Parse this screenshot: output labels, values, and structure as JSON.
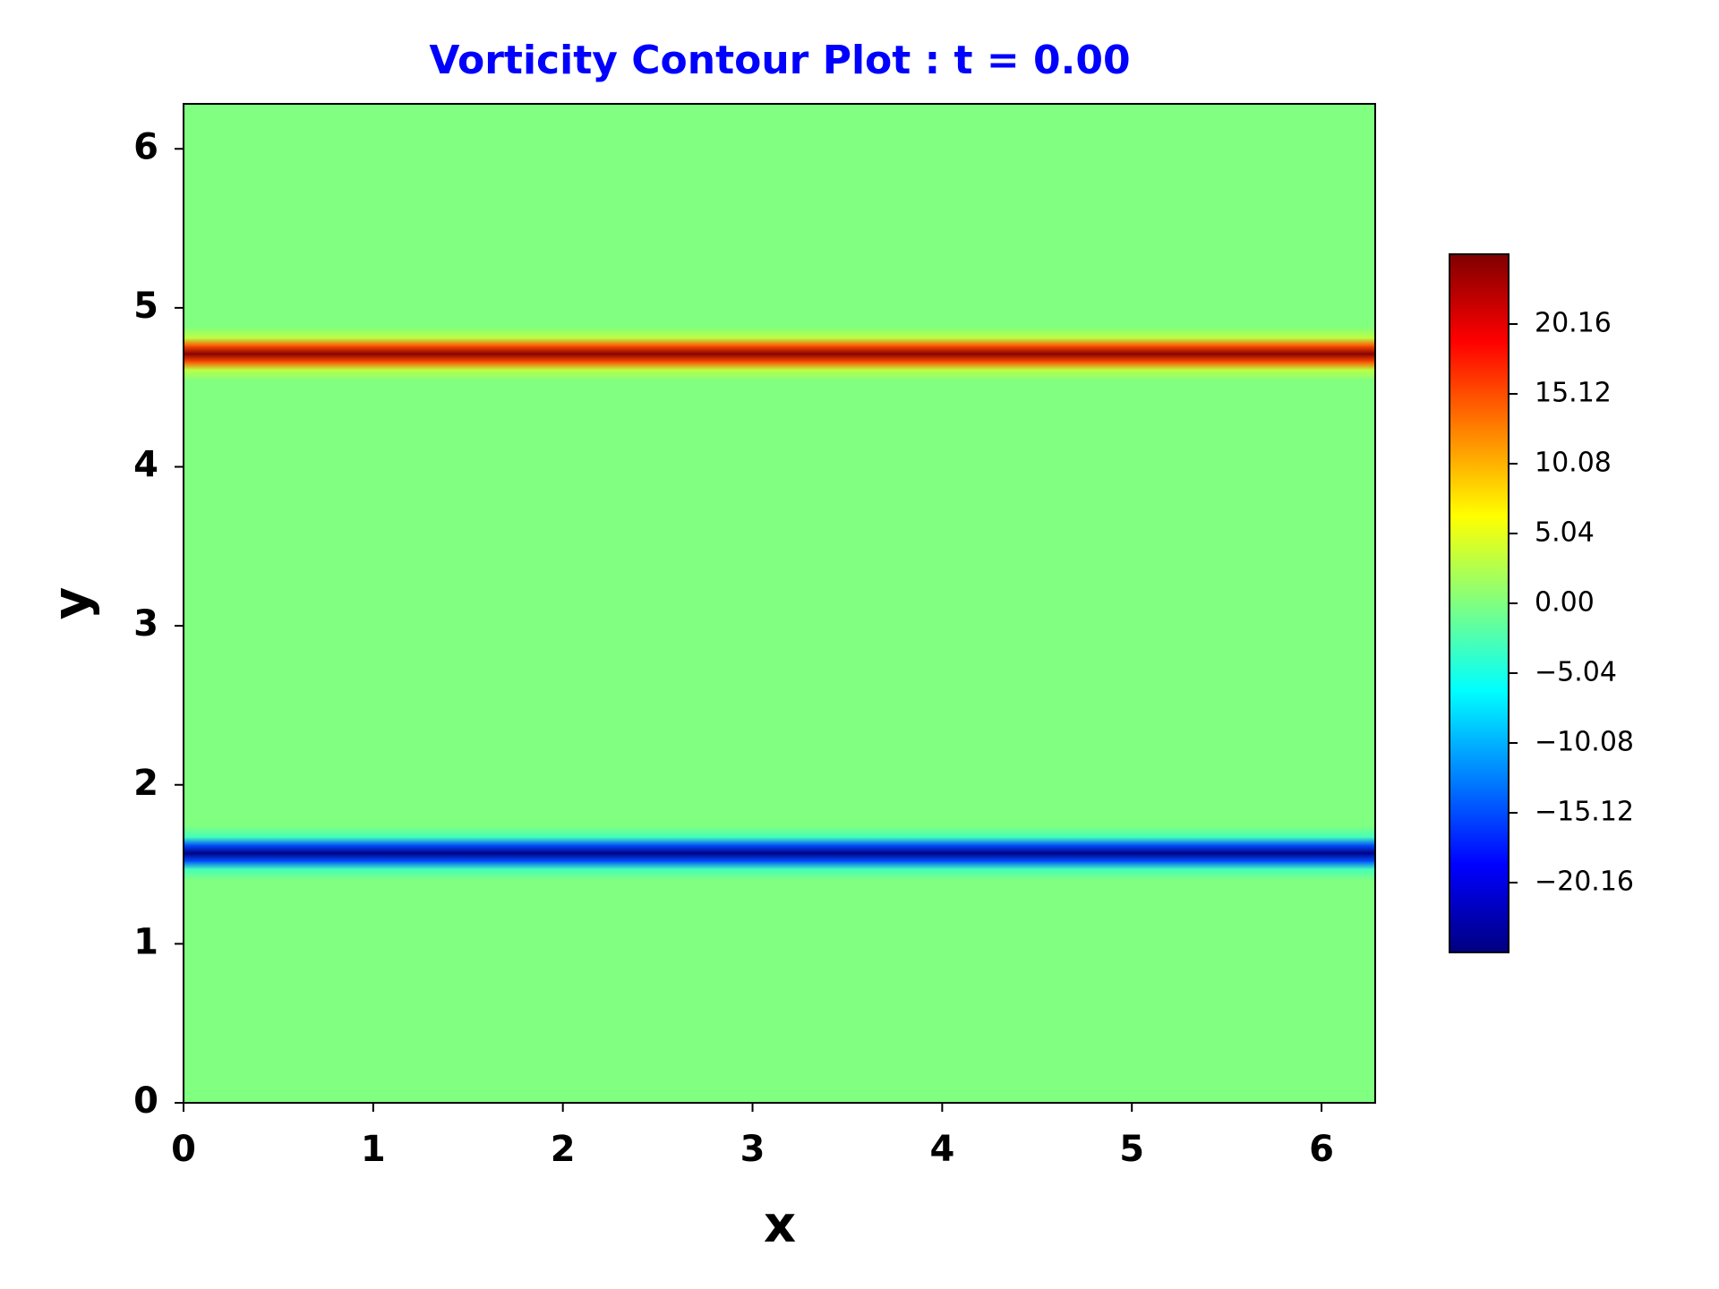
{
  "chart_data": {
    "type": "heatmap",
    "title": "Vorticity Contour Plot : t = 0.00",
    "title_color": "#0000ff",
    "xlabel": "x",
    "ylabel": "y",
    "colormap": "jet",
    "y": [
      0,
      1.4,
      1.47,
      1.52,
      1.57,
      1.62,
      1.67,
      1.74,
      4.54,
      4.61,
      4.66,
      4.71,
      4.76,
      4.81,
      4.88,
      6.283
    ],
    "values": [
      0,
      0,
      -3,
      -15,
      -25,
      -15,
      -3,
      0,
      0,
      3,
      15,
      25,
      15,
      3,
      0,
      0
    ],
    "xlim": [
      0,
      6.283
    ],
    "ylim": [
      0,
      6.283
    ],
    "xticks": [
      0,
      1,
      2,
      3,
      4,
      5,
      6
    ],
    "yticks": [
      0,
      1,
      2,
      3,
      4,
      5,
      6
    ],
    "clim": [
      -25.2,
      25.2
    ],
    "cticks": [
      {
        "value": -20.16,
        "label": "−20.16"
      },
      {
        "value": -15.12,
        "label": "−15.12"
      },
      {
        "value": -10.08,
        "label": "−10.08"
      },
      {
        "value": -5.04,
        "label": "−5.04"
      },
      {
        "value": 0,
        "label": "0.00"
      },
      5.04,
      10.08,
      15.12,
      20.16
    ]
  }
}
